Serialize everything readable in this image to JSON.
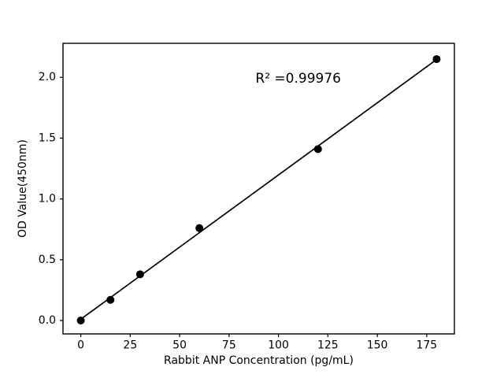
{
  "figure": {
    "background": "#ffffff",
    "frame_color": "#000000"
  },
  "chart_data": {
    "type": "scatter",
    "title": "",
    "xlabel": "Rabbit ANP Concentration (pg/mL)",
    "ylabel": "OD Value(450nm)",
    "x": [
      0,
      15,
      30,
      60,
      120,
      180
    ],
    "y": [
      0.0,
      0.17,
      0.38,
      0.76,
      1.41,
      2.15
    ],
    "series": [
      {
        "name": "standard-points",
        "type": "scatter",
        "marker": "circle",
        "color": "#000000"
      }
    ],
    "fit_line": {
      "type": "linear-regression",
      "color": "#000000"
    },
    "annotation": {
      "text": "R² =0.99976",
      "x": 110,
      "y": 1.99
    },
    "xlim": [
      -9,
      189
    ],
    "ylim": [
      -0.11,
      2.28
    ],
    "xticks": [
      0,
      25,
      50,
      75,
      100,
      125,
      150,
      175
    ],
    "yticks": [
      "0.0",
      "0.5",
      "1.0",
      "1.5",
      "2.0"
    ],
    "grid": false,
    "legend_position": "none",
    "marker_color": "#000000",
    "line_color": "#000000"
  }
}
